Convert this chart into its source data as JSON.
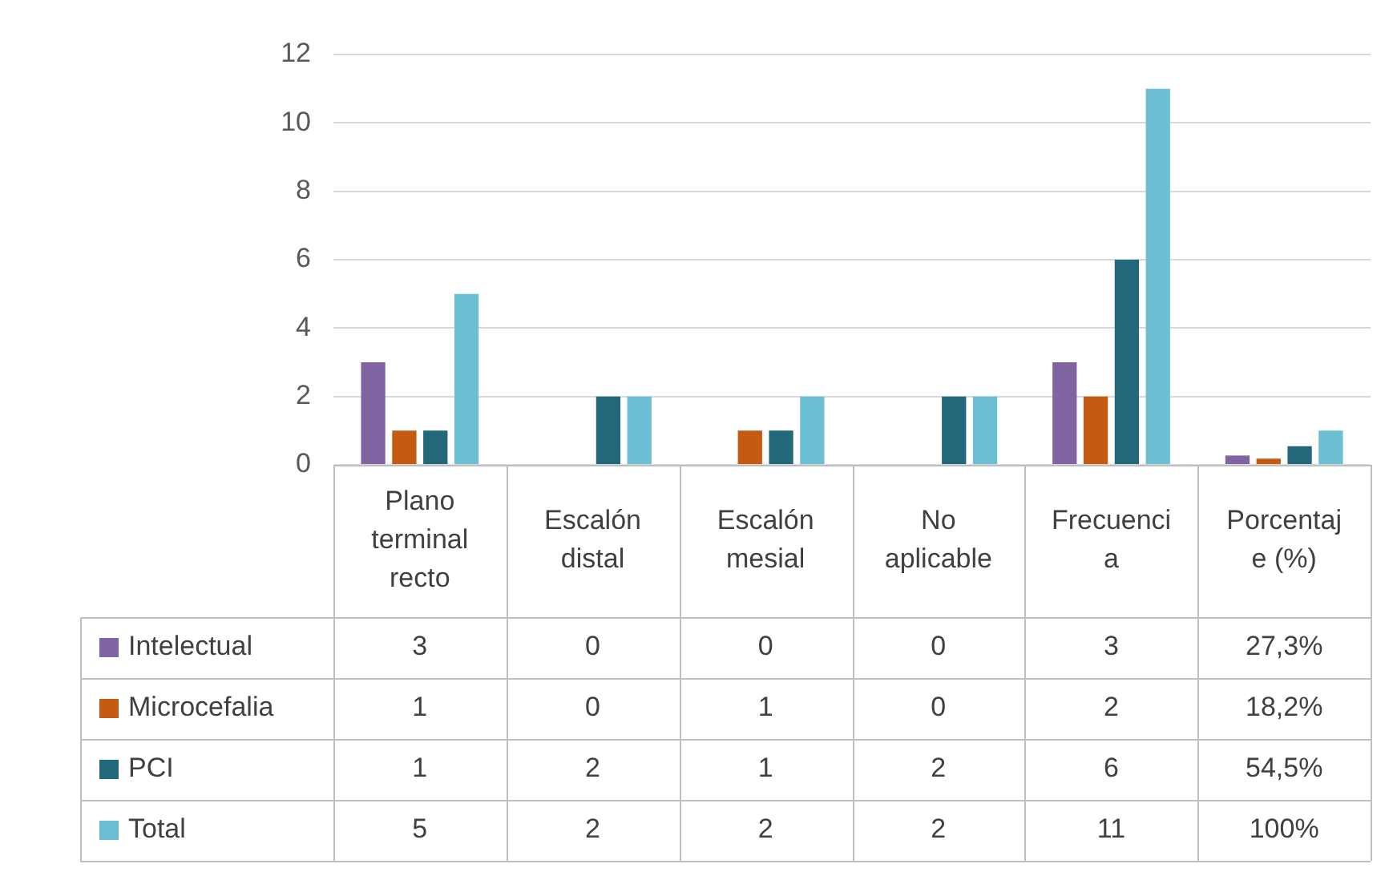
{
  "chart_data": {
    "type": "bar",
    "categories": [
      "Plano terminal recto",
      "Escalón distal",
      "Escalón mesial",
      "No aplicable",
      "Frecuencia",
      "Porcentaje (%)"
    ],
    "series": [
      {
        "name": "Intelectual",
        "color": "#8064a2",
        "values": [
          3,
          0,
          0,
          0,
          3,
          0.273
        ],
        "value_labels": [
          "3",
          "0",
          "0",
          "0",
          "3",
          "27,3%"
        ]
      },
      {
        "name": "Microcefalia",
        "color": "#c55a11",
        "values": [
          1,
          0,
          1,
          0,
          2,
          0.182
        ],
        "value_labels": [
          "1",
          "0",
          "1",
          "0",
          "2",
          "18,2%"
        ]
      },
      {
        "name": "PCI",
        "color": "#22677a",
        "values": [
          1,
          2,
          1,
          2,
          6,
          0.545
        ],
        "value_labels": [
          "1",
          "2",
          "1",
          "2",
          "6",
          "54,5%"
        ]
      },
      {
        "name": "Total",
        "color": "#6cbfd3",
        "values": [
          5,
          2,
          2,
          2,
          11,
          1
        ],
        "value_labels": [
          "5",
          "2",
          "2",
          "2",
          "11",
          "100%"
        ]
      }
    ],
    "ylim": [
      0,
      12
    ],
    "yticks": [
      0,
      2,
      4,
      6,
      8,
      10,
      12
    ],
    "grid": "y",
    "legend": "bottom left"
  }
}
